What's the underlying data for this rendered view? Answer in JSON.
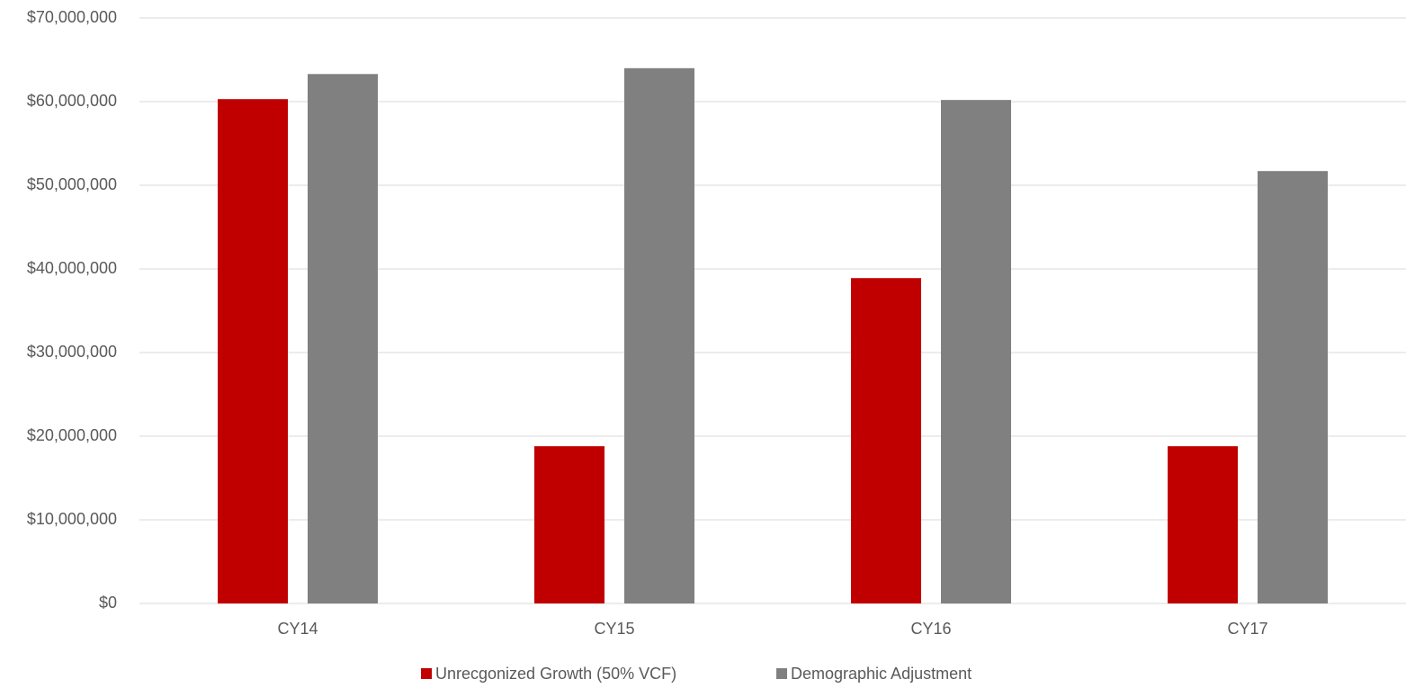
{
  "chart_data": {
    "type": "bar",
    "categories": [
      "CY14",
      "CY15",
      "CY16",
      "CY17"
    ],
    "series": [
      {
        "name": "Unrecgonized Growth (50% VCF)",
        "color": "#c00000",
        "values": [
          60300000,
          18800000,
          38900000,
          18800000
        ]
      },
      {
        "name": "Demographic Adjustment",
        "color": "#808080",
        "values": [
          63300000,
          64000000,
          60200000,
          51700000
        ]
      }
    ],
    "ylim": [
      0,
      70000000
    ],
    "yticks": [
      {
        "value": 0,
        "label": "$0"
      },
      {
        "value": 10000000,
        "label": "$10,000,000"
      },
      {
        "value": 20000000,
        "label": "$20,000,000"
      },
      {
        "value": 30000000,
        "label": "$30,000,000"
      },
      {
        "value": 40000000,
        "label": "$40,000,000"
      },
      {
        "value": 50000000,
        "label": "$50,000,000"
      },
      {
        "value": 60000000,
        "label": "$60,000,000"
      },
      {
        "value": 70000000,
        "label": "$70,000,000"
      }
    ],
    "grid": true
  }
}
